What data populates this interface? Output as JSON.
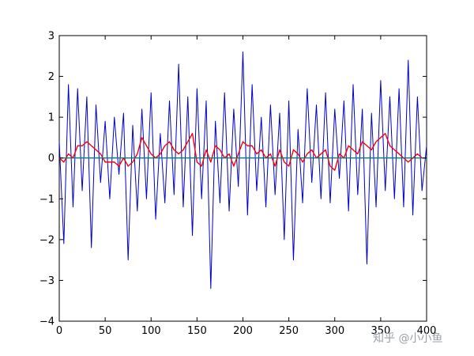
{
  "chart_data": {
    "type": "line",
    "title": "",
    "xlabel": "",
    "ylabel": "",
    "xlim": [
      0,
      400
    ],
    "ylim": [
      -4,
      3
    ],
    "x_ticks": [
      0,
      50,
      100,
      150,
      200,
      250,
      300,
      350,
      400
    ],
    "y_ticks": [
      -4,
      -3,
      -2,
      -1,
      0,
      1,
      2,
      3
    ],
    "x_tick_labels": [
      "0",
      "50",
      "100",
      "150",
      "200",
      "250",
      "300",
      "350",
      "400"
    ],
    "y_tick_labels": [
      "−4",
      "−3",
      "−2",
      "−1",
      "0",
      "1",
      "2",
      "3"
    ],
    "grid": false,
    "legend": "none",
    "series": [
      {
        "color": "#0000cc",
        "style": "noise",
        "x": [
          0,
          5,
          10,
          15,
          20,
          25,
          30,
          35,
          40,
          45,
          50,
          55,
          60,
          65,
          70,
          75,
          80,
          85,
          90,
          95,
          100,
          105,
          110,
          115,
          120,
          125,
          130,
          135,
          140,
          145,
          150,
          155,
          160,
          165,
          170,
          175,
          180,
          185,
          190,
          195,
          200,
          205,
          210,
          215,
          220,
          225,
          230,
          235,
          240,
          245,
          250,
          255,
          260,
          265,
          270,
          275,
          280,
          285,
          290,
          295,
          300,
          305,
          310,
          315,
          320,
          325,
          330,
          335,
          340,
          345,
          350,
          355,
          360,
          365,
          370,
          375,
          380,
          385,
          390,
          395,
          400
        ],
        "values": [
          0.4,
          -2.1,
          1.8,
          -1.2,
          1.7,
          -0.8,
          1.5,
          -2.2,
          1.3,
          -0.6,
          0.9,
          -1.0,
          1.0,
          -0.4,
          1.1,
          -2.5,
          0.8,
          -1.3,
          1.2,
          -1.0,
          1.6,
          -1.5,
          0.6,
          -1.1,
          1.4,
          -0.9,
          2.3,
          -1.2,
          1.5,
          -1.9,
          1.7,
          -1.0,
          1.4,
          -3.2,
          0.9,
          -1.1,
          1.6,
          -1.3,
          1.2,
          -0.7,
          2.6,
          -1.4,
          1.8,
          -0.8,
          1.0,
          -1.2,
          1.3,
          -0.9,
          1.1,
          -2.0,
          1.4,
          -2.5,
          0.7,
          -1.1,
          1.7,
          -0.6,
          1.3,
          -1.0,
          1.6,
          -1.1,
          1.2,
          -0.5,
          1.4,
          -1.3,
          1.8,
          -0.9,
          1.2,
          -2.6,
          1.1,
          -1.2,
          1.9,
          -0.8,
          1.5,
          -1.0,
          1.7,
          -1.2,
          2.4,
          -1.4,
          1.5,
          -0.8,
          0.3
        ]
      },
      {
        "color": "#ff0000",
        "style": "smoothed",
        "x": [
          0,
          5,
          10,
          15,
          20,
          25,
          30,
          35,
          40,
          45,
          50,
          55,
          60,
          65,
          70,
          75,
          80,
          85,
          90,
          95,
          100,
          105,
          110,
          115,
          120,
          125,
          130,
          135,
          140,
          145,
          150,
          155,
          160,
          165,
          170,
          175,
          180,
          185,
          190,
          195,
          200,
          205,
          210,
          215,
          220,
          225,
          230,
          235,
          240,
          245,
          250,
          255,
          260,
          265,
          270,
          275,
          280,
          285,
          290,
          295,
          300,
          305,
          310,
          315,
          320,
          325,
          330,
          335,
          340,
          345,
          350,
          355,
          360,
          365,
          370,
          375,
          380,
          385,
          390,
          395,
          400
        ],
        "values": [
          0.0,
          -0.1,
          0.1,
          0.0,
          0.3,
          0.3,
          0.4,
          0.3,
          0.2,
          0.1,
          -0.1,
          -0.1,
          -0.1,
          -0.2,
          0.0,
          -0.2,
          -0.1,
          0.1,
          0.5,
          0.3,
          0.1,
          0.0,
          0.1,
          0.3,
          0.4,
          0.2,
          0.1,
          0.2,
          0.4,
          0.6,
          -0.1,
          -0.2,
          0.2,
          -0.1,
          0.3,
          0.2,
          0.0,
          0.1,
          -0.2,
          0.1,
          0.4,
          0.3,
          0.3,
          0.1,
          0.2,
          0.0,
          0.1,
          -0.2,
          0.2,
          -0.1,
          -0.2,
          0.2,
          0.1,
          -0.1,
          0.1,
          0.2,
          0.0,
          0.1,
          0.2,
          -0.2,
          -0.3,
          0.1,
          0.0,
          0.3,
          0.2,
          0.1,
          0.4,
          0.3,
          0.2,
          0.4,
          0.5,
          0.6,
          0.3,
          0.2,
          0.1,
          0.0,
          -0.1,
          0.0,
          0.1,
          0.0,
          0.0
        ]
      },
      {
        "color": "#008080",
        "style": "line",
        "x": [
          0,
          400
        ],
        "values": [
          0.0,
          0.0
        ]
      }
    ]
  },
  "watermark": "知乎 @小小鱼"
}
